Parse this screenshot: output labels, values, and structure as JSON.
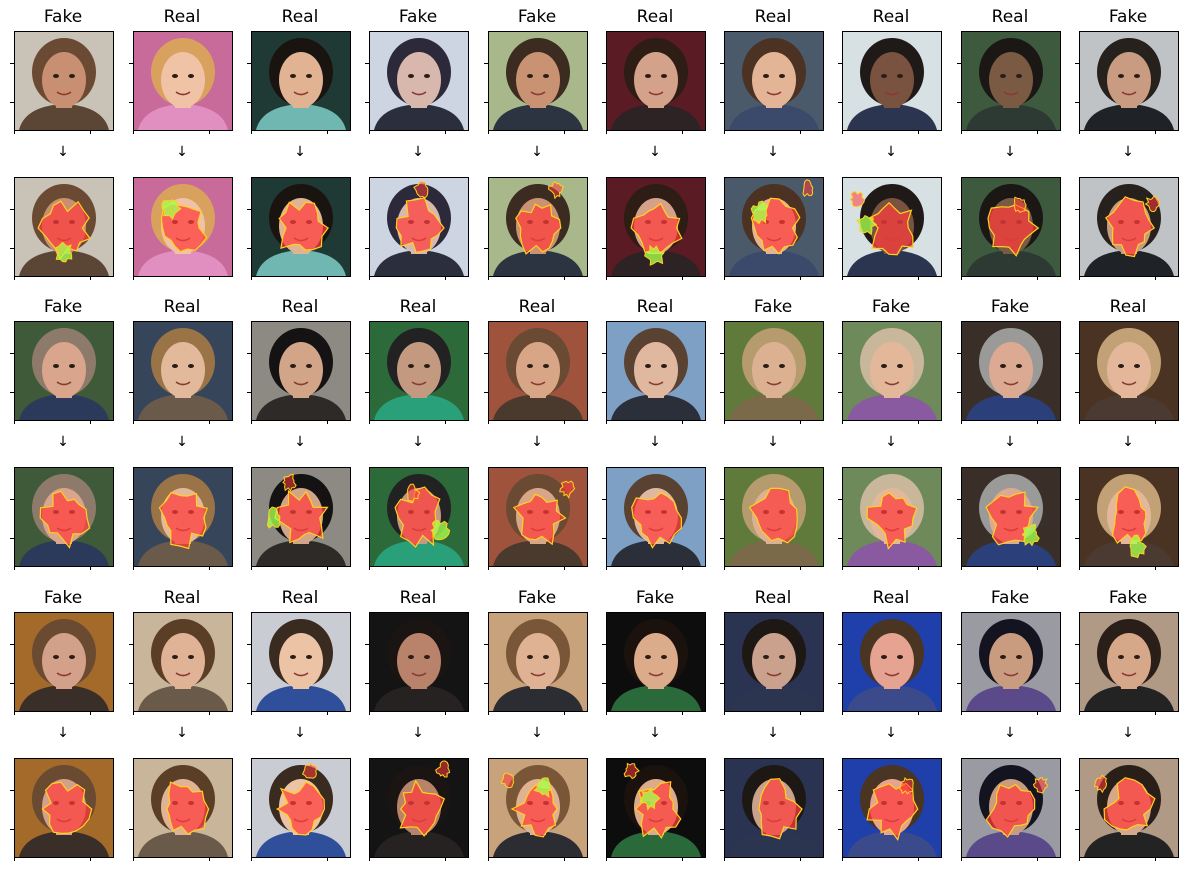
{
  "arrow_glyph": "↓",
  "colors": {
    "heatmap_primary": "#ff3b3b",
    "heatmap_secondary": "#a6ff4d",
    "heatmap_outline": "#ffd21f",
    "background": "#ffffff",
    "frame": "#000000"
  },
  "bands": [
    {
      "labels": [
        "Fake",
        "Real",
        "Real",
        "Fake",
        "Fake",
        "Real",
        "Real",
        "Real",
        "Real",
        "Fake"
      ],
      "faces": [
        {
          "bg": "#c9c2b6",
          "skin": "#c98f73",
          "hair": "#6b4a34",
          "cloth": "#5b4636"
        },
        {
          "bg": "#c86a9a",
          "skin": "#f0c2a6",
          "hair": "#d9a15e",
          "cloth": "#e08fc0"
        },
        {
          "bg": "#1f3a35",
          "skin": "#e1b392",
          "hair": "#1a1410",
          "cloth": "#6fb7b0"
        },
        {
          "bg": "#cdd5e2",
          "skin": "#d8b8ad",
          "hair": "#2c2a3a",
          "cloth": "#2a2e3d"
        },
        {
          "bg": "#a9b88a",
          "skin": "#c99273",
          "hair": "#3b2b20",
          "cloth": "#2b3440"
        },
        {
          "bg": "#5a1b24",
          "skin": "#d4a28a",
          "hair": "#2d1d15",
          "cloth": "#2d2324"
        },
        {
          "bg": "#4a5a6a",
          "skin": "#e4b496",
          "hair": "#4b3222",
          "cloth": "#3b4a6a"
        },
        {
          "bg": "#d7e0e2",
          "skin": "#7a5240",
          "hair": "#1f1a18",
          "cloth": "#2b3550"
        },
        {
          "bg": "#3d5a3f",
          "skin": "#7b5a43",
          "hair": "#1b1714",
          "cloth": "#2d3a33"
        },
        {
          "bg": "#bfc3c6",
          "skin": "#c99c82",
          "hair": "#27211d",
          "cloth": "#1f2327"
        }
      ]
    },
    {
      "labels": [
        "Fake",
        "Real",
        "Real",
        "Real",
        "Real",
        "Real",
        "Fake",
        "Fake",
        "Fake",
        "Real"
      ],
      "faces": [
        {
          "bg": "#3f5a38",
          "skin": "#d9a58c",
          "hair": "#8e7a6a",
          "cloth": "#2b3a5a"
        },
        {
          "bg": "#36455a",
          "skin": "#e3b99b",
          "hair": "#9a7446",
          "cloth": "#6a5a4a"
        },
        {
          "bg": "#8c8a83",
          "skin": "#d2a488",
          "hair": "#141212",
          "cloth": "#2e2a28"
        },
        {
          "bg": "#2d6a3a",
          "skin": "#c39a80",
          "hair": "#222222",
          "cloth": "#2aa07a"
        },
        {
          "bg": "#a0533c",
          "skin": "#d8a587",
          "hair": "#6a4a32",
          "cloth": "#4a3a2e"
        },
        {
          "bg": "#7ea0c4",
          "skin": "#e0b8a0",
          "hair": "#5a4232",
          "cloth": "#2a2f3a"
        },
        {
          "bg": "#5f7a3a",
          "skin": "#dcb192",
          "hair": "#b69b6e",
          "cloth": "#7a6a4a"
        },
        {
          "bg": "#6f8a5a",
          "skin": "#e3b79a",
          "hair": "#c9b79b",
          "cloth": "#8a5aa0"
        },
        {
          "bg": "#3a2e28",
          "skin": "#dcaa92",
          "hair": "#9a9a98",
          "cloth": "#2b3f7a"
        },
        {
          "bg": "#4a3322",
          "skin": "#e4b79b",
          "hair": "#c3a176",
          "cloth": "#4a3a32"
        }
      ]
    },
    {
      "labels": [
        "Fake",
        "Real",
        "Real",
        "Real",
        "Fake",
        "Fake",
        "Real",
        "Real",
        "Fake",
        "Fake"
      ],
      "faces": [
        {
          "bg": "#a36a2a",
          "skin": "#d3a08a",
          "hair": "#6a4a30",
          "cloth": "#3a2e28"
        },
        {
          "bg": "#c9b59a",
          "skin": "#e0b296",
          "hair": "#5a3e26",
          "cloth": "#6a5a4a"
        },
        {
          "bg": "#c9ccd2",
          "skin": "#edc3a6",
          "hair": "#3a2b20",
          "cloth": "#2f4f9a"
        },
        {
          "bg": "#141414",
          "skin": "#b8836a",
          "hair": "#1a1412",
          "cloth": "#262222"
        },
        {
          "bg": "#c7a27a",
          "skin": "#e0b294",
          "hair": "#7a5638",
          "cloth": "#2c2c33"
        },
        {
          "bg": "#0d0d0d",
          "skin": "#dcab8a",
          "hair": "#1b120e",
          "cloth": "#2a6a3a"
        },
        {
          "bg": "#2a3452",
          "skin": "#caa18c",
          "hair": "#1e1814",
          "cloth": "#2b3550"
        },
        {
          "bg": "#1f3faa",
          "skin": "#e6a392",
          "hair": "#4a3422",
          "cloth": "#3a4a8a"
        },
        {
          "bg": "#9a9aa2",
          "skin": "#c99c80",
          "hair": "#141420",
          "cloth": "#5a4a8a"
        },
        {
          "bg": "#b09a86",
          "skin": "#d7a789",
          "hair": "#2a1f18",
          "cloth": "#232323"
        }
      ]
    }
  ]
}
